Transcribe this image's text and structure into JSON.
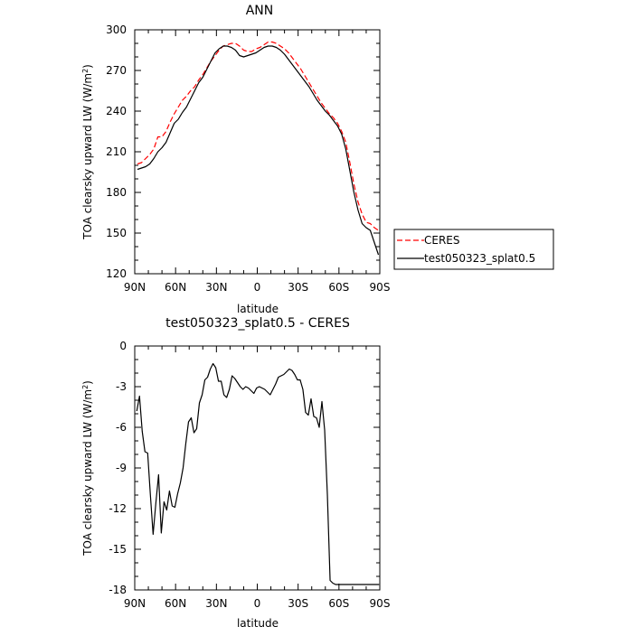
{
  "chart_data": [
    {
      "type": "line",
      "title": "ANN",
      "xlabel": "latitude",
      "ylabel_main": "TOA clearsky upward LW (W/m",
      "ylabel_sup": "2",
      "ylabel_tail": ")",
      "xlim": [
        90,
        -90
      ],
      "ylim": [
        120,
        300
      ],
      "xticks": [
        {
          "value": 90,
          "label": "90N"
        },
        {
          "value": 60,
          "label": "60N"
        },
        {
          "value": 30,
          "label": "30N"
        },
        {
          "value": 0,
          "label": "0"
        },
        {
          "value": -30,
          "label": "30S"
        },
        {
          "value": -60,
          "label": "60S"
        },
        {
          "value": -90,
          "label": "90S"
        }
      ],
      "yticks": [
        120,
        150,
        180,
        210,
        240,
        270,
        300
      ],
      "legend": "outside-right",
      "series": [
        {
          "name": "CERES",
          "color": "#ff0000",
          "dash": "dashed",
          "x": [
            88,
            85,
            82,
            79,
            76,
            73,
            70,
            67,
            64,
            61,
            58,
            55,
            52,
            49,
            46,
            43,
            40,
            37,
            34,
            31,
            28,
            25,
            22,
            19,
            16,
            13,
            10,
            7,
            4,
            1,
            -2,
            -5,
            -8,
            -11,
            -14,
            -17,
            -20,
            -23,
            -26,
            -29,
            -32,
            -35,
            -38,
            -41,
            -44,
            -47,
            -50,
            -53,
            -56,
            -59,
            -62,
            -65,
            -68,
            -71,
            -74,
            -77,
            -80,
            -83,
            -86,
            -89
          ],
          "y": [
            201,
            202,
            205,
            208,
            212,
            221,
            221,
            225,
            232,
            238,
            243,
            248,
            251,
            255,
            258,
            263,
            267,
            272,
            277,
            281,
            285,
            288,
            289,
            290,
            290,
            288,
            285,
            284,
            284,
            286,
            287,
            289,
            291,
            291,
            290,
            288,
            286,
            283,
            279,
            275,
            271,
            266,
            261,
            256,
            251,
            246,
            242,
            238,
            235,
            231,
            225,
            217,
            202,
            186,
            173,
            164,
            158,
            157,
            154,
            152
          ]
        },
        {
          "name": "test050323_splat0.5",
          "color": "#000000",
          "dash": "solid",
          "x": [
            88,
            85,
            82,
            79,
            76,
            73,
            70,
            67,
            64,
            61,
            58,
            55,
            52,
            49,
            46,
            43,
            40,
            37,
            34,
            31,
            28,
            25,
            22,
            19,
            16,
            13,
            10,
            7,
            4,
            1,
            -2,
            -5,
            -8,
            -11,
            -14,
            -17,
            -20,
            -23,
            -26,
            -29,
            -32,
            -35,
            -38,
            -41,
            -44,
            -47,
            -50,
            -53,
            -56,
            -59,
            -62,
            -65,
            -68,
            -71,
            -74,
            -77,
            -80,
            -83,
            -86,
            -89
          ],
          "y": [
            197,
            198,
            199,
            201,
            205,
            210,
            213,
            217,
            224,
            231,
            234,
            239,
            243,
            249,
            255,
            261,
            265,
            271,
            277,
            283,
            286,
            288,
            288,
            287,
            285,
            281,
            280,
            281,
            282,
            283,
            285,
            287,
            288,
            288,
            287,
            285,
            282,
            278,
            274,
            270,
            266,
            262,
            258,
            253,
            248,
            244,
            240,
            237,
            233,
            229,
            223,
            212,
            196,
            180,
            167,
            157,
            154,
            152,
            143,
            134
          ]
        }
      ]
    },
    {
      "type": "line",
      "title": "test050323_splat0.5 - CERES",
      "xlabel": "latitude",
      "ylabel_main": "TOA clearsky upward LW (W/m",
      "ylabel_sup": "2",
      "ylabel_tail": ")",
      "xlim": [
        90,
        -90
      ],
      "ylim": [
        -18,
        0
      ],
      "xticks": [
        {
          "value": 90,
          "label": "90N"
        },
        {
          "value": 60,
          "label": "60N"
        },
        {
          "value": 30,
          "label": "30N"
        },
        {
          "value": 0,
          "label": "0"
        },
        {
          "value": -30,
          "label": "30S"
        },
        {
          "value": -60,
          "label": "60S"
        },
        {
          "value": -90,
          "label": "90S"
        }
      ],
      "yticks": [
        -18,
        -15,
        -12,
        -9,
        -6,
        -3,
        0
      ],
      "series": [
        {
          "name": "",
          "color": "#000000",
          "dash": "solid",
          "x": [
            88.5,
            86.5,
            84.5,
            82.5,
            80.5,
            78.5,
            76.5,
            74.5,
            72.5,
            70.5,
            68.5,
            66.5,
            64.5,
            62.5,
            60.5,
            58.5,
            56.5,
            54.5,
            52.5,
            50.5,
            48.5,
            46.5,
            44.5,
            42.5,
            40.5,
            38.5,
            36.5,
            34.5,
            32.5,
            30.5,
            28.5,
            26.5,
            24.5,
            22.5,
            20.5,
            18.5,
            16.5,
            14.5,
            12.5,
            10.5,
            8.5,
            6.5,
            4.5,
            2.5,
            0.5,
            -1.5,
            -3.5,
            -5.5,
            -7.5,
            -9.5,
            -11.5,
            -13.5,
            -15.5,
            -17.5,
            -19.5,
            -21.5,
            -23.5,
            -25.5,
            -27.5,
            -29.5,
            -31.5,
            -33.5,
            -35.5,
            -37.5,
            -39.5,
            -41.5,
            -43.5,
            -45.5,
            -47.5,
            -49.5,
            -51.5,
            -53.5,
            -55.5,
            -57.5,
            -59.5,
            -61.5,
            -63.5,
            -65.5,
            -67.5,
            -69.5,
            -71.5,
            -73.5,
            -75.5,
            -77.5,
            -79.5,
            -81.5,
            -83.5,
            -85.5,
            -87.5,
            -89.5
          ],
          "y": [
            -4.8,
            -3.7,
            -6.3,
            -7.8,
            -7.9,
            -11.0,
            -13.9,
            -11.6,
            -9.5,
            -13.8,
            -11.5,
            -12.1,
            -10.7,
            -11.8,
            -11.9,
            -10.9,
            -10.1,
            -9.0,
            -7.2,
            -5.6,
            -5.3,
            -6.4,
            -6.1,
            -4.2,
            -3.6,
            -2.5,
            -2.3,
            -1.7,
            -1.3,
            -1.6,
            -2.6,
            -2.6,
            -3.6,
            -3.8,
            -3.2,
            -2.2,
            -2.4,
            -2.7,
            -3.0,
            -3.2,
            -3.0,
            -3.1,
            -3.3,
            -3.5,
            -3.1,
            -3.0,
            -3.1,
            -3.2,
            -3.4,
            -3.6,
            -3.2,
            -2.8,
            -2.3,
            -2.2,
            -2.1,
            -1.9,
            -1.7,
            -1.8,
            -2.1,
            -2.5,
            -2.5,
            -3.2,
            -4.9,
            -5.1,
            -3.9,
            -5.2,
            -5.3,
            -6.0,
            -4.1,
            -6.2,
            -11.0,
            -17.3,
            -17.5,
            -17.6,
            -17.6,
            -17.6,
            -17.6,
            -17.6,
            -17.6,
            -17.6,
            -17.6,
            -17.6,
            -17.6,
            -17.6,
            -17.6,
            -17.6,
            -17.6,
            -17.6,
            -17.6,
            -17.6
          ]
        }
      ]
    }
  ]
}
